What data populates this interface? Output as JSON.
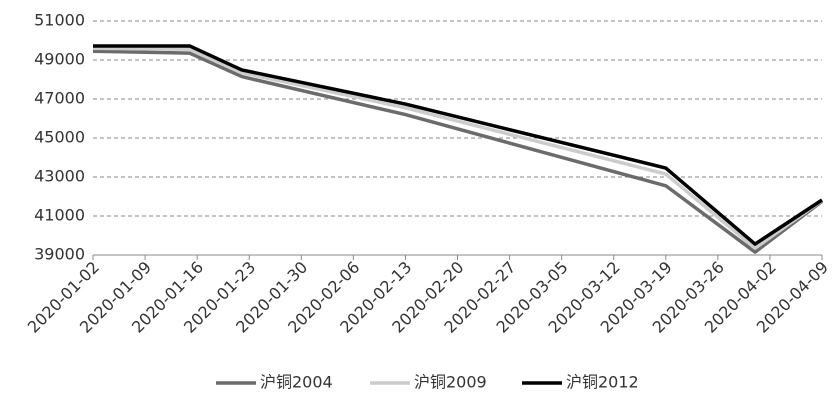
{
  "chart_data": {
    "type": "line",
    "x": [
      "2020-01-02",
      "2020-01-15",
      "2020-01-22",
      "2020-02-13",
      "2020-03-19",
      "2020-03-31",
      "2020-04-09"
    ],
    "series": [
      {
        "name": "沪铜2004",
        "color": "#6b6b6b",
        "values": [
          49450,
          49350,
          48150,
          46200,
          42550,
          39150,
          41750
        ]
      },
      {
        "name": "沪铜2009",
        "color": "#cccccc",
        "values": [
          49600,
          49550,
          48350,
          46550,
          43150,
          39350,
          41800
        ]
      },
      {
        "name": "沪铜2012",
        "color": "#000000",
        "values": [
          49720,
          49720,
          48490,
          46740,
          43460,
          39560,
          41820
        ]
      }
    ],
    "xlim": [
      "2020-01-02",
      "2020-04-09"
    ],
    "xticks": [
      "2020-01-02",
      "2020-01-09",
      "2020-01-16",
      "2020-01-23",
      "2020-01-30",
      "2020-02-06",
      "2020-02-13",
      "2020-02-20",
      "2020-02-27",
      "2020-03-05",
      "2020-03-12",
      "2020-03-19",
      "2020-03-26",
      "2020-04-02",
      "2020-04-09"
    ],
    "ylim": [
      39000,
      51000
    ],
    "yticks": [
      39000,
      41000,
      43000,
      45000,
      47000,
      49000,
      51000
    ],
    "grid": true,
    "legend": "bottom"
  }
}
